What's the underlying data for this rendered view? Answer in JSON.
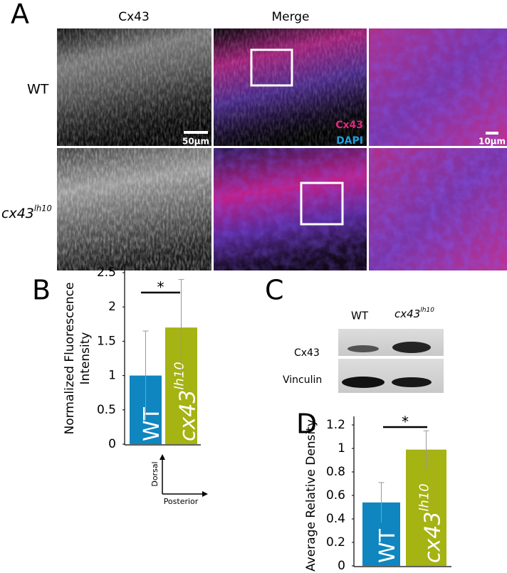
{
  "panel_labels": [
    "A",
    "B",
    "C",
    "D"
  ],
  "panel_a": {
    "column_titles": [
      "Cx43",
      "Merge"
    ],
    "row_labels": [
      "WT",
      {
        "base": "cx43",
        "sup": "lh10"
      }
    ],
    "scale_bars": [
      "50µm",
      "10µm"
    ],
    "channel_legend": [
      {
        "text": "Cx43",
        "color": "#e0287f"
      },
      {
        "text": "DAPI",
        "color": "#1e9fe0"
      }
    ]
  },
  "panel_c": {
    "lane_labels": [
      "WT",
      {
        "base": "cx43",
        "sup": "lh10"
      }
    ],
    "band_labels": [
      "Cx43",
      "Vinculin"
    ]
  },
  "axis_arrows": [
    "Dorsal",
    "Posterior"
  ],
  "chart_data": [
    {
      "type": "bar",
      "y_label": [
        "Normalized Fluorescence",
        "Intensity"
      ],
      "categories": [
        "WT",
        {
          "base": "cx43",
          "sup": "lh10"
        }
      ],
      "values": [
        1.0,
        1.7
      ],
      "errors": [
        0.65,
        0.7
      ],
      "colors": [
        "#0f86bf",
        "#a5b313"
      ],
      "significance": "*",
      "ylim": [
        0,
        2.5
      ],
      "yticks": [
        0,
        0.5,
        1,
        1.5,
        2,
        2.5
      ]
    },
    {
      "type": "bar",
      "y_label": [
        "Average Relative Density"
      ],
      "categories": [
        "WT",
        {
          "base": "cx43",
          "sup": "lh10"
        }
      ],
      "values": [
        0.54,
        0.99
      ],
      "errors": [
        0.17,
        0.16
      ],
      "colors": [
        "#0f86bf",
        "#a5b313"
      ],
      "significance": "*",
      "ylim": [
        0,
        1.2
      ],
      "yticks": [
        0,
        0.2,
        0.4,
        0.6,
        0.8,
        1,
        1.2
      ]
    }
  ]
}
